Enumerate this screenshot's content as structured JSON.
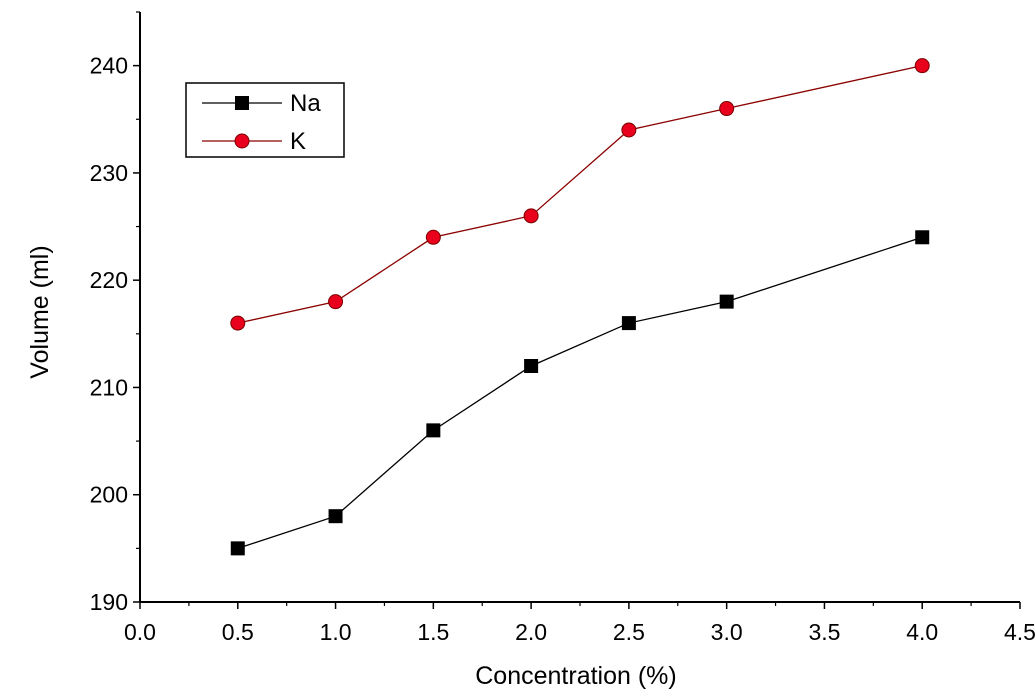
{
  "chart_data": {
    "type": "line",
    "title": "",
    "xlabel": "Concentration (%)",
    "ylabel": "Volume (ml)",
    "xlim": [
      0.0,
      4.5
    ],
    "ylim": [
      190,
      245
    ],
    "x_ticks": [
      0.0,
      0.5,
      1.0,
      1.5,
      2.0,
      2.5,
      3.0,
      3.5,
      4.0,
      4.5
    ],
    "x_tick_labels": [
      "0.0",
      "0.5",
      "1.0",
      "1.5",
      "2.0",
      "2.5",
      "3.0",
      "3.5",
      "4.0",
      "4.5"
    ],
    "y_ticks": [
      190,
      200,
      210,
      220,
      230,
      240
    ],
    "y_tick_labels": [
      "190",
      "200",
      "210",
      "220",
      "230",
      "240"
    ],
    "grid": false,
    "legend_position": "top-left",
    "x": [
      0.5,
      1.0,
      1.5,
      2.0,
      2.5,
      3.0,
      4.0
    ],
    "series": [
      {
        "name": "Na",
        "marker": "square",
        "line_color": "#000000",
        "marker_color": "#000000",
        "values": [
          195,
          198,
          206,
          212,
          216,
          218,
          224
        ]
      },
      {
        "name": "K",
        "marker": "circle",
        "line_color": "#8b0000",
        "marker_color": "#e8001c",
        "values": [
          216,
          218,
          224,
          226,
          234,
          236,
          240
        ]
      }
    ]
  }
}
